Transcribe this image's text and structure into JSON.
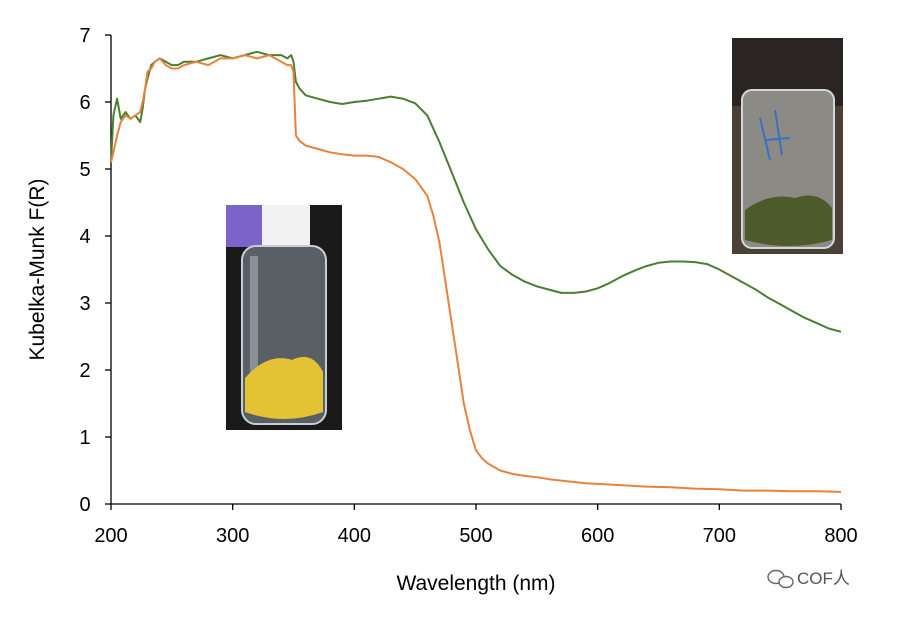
{
  "chart_data": {
    "type": "line",
    "title": "",
    "xlabel": "Wavelength (nm)",
    "ylabel": "Kubelka-Munk F(R)",
    "xlim": [
      200,
      800
    ],
    "ylim": [
      0,
      7
    ],
    "xticks": [
      200,
      300,
      400,
      500,
      600,
      700,
      800
    ],
    "yticks": [
      0,
      1,
      2,
      3,
      4,
      5,
      6,
      7
    ],
    "grid": false,
    "legend": "none",
    "series": [
      {
        "name": "green sample",
        "color": "#4a7f32",
        "x": [
          200,
          202,
          205,
          208,
          212,
          216,
          220,
          224,
          226,
          228,
          230,
          233,
          236,
          240,
          245,
          250,
          255,
          260,
          270,
          280,
          290,
          300,
          310,
          320,
          330,
          340,
          345,
          348,
          350,
          352,
          355,
          360,
          370,
          380,
          390,
          400,
          410,
          420,
          430,
          440,
          450,
          460,
          470,
          480,
          490,
          500,
          510,
          520,
          530,
          540,
          550,
          560,
          570,
          580,
          590,
          600,
          610,
          620,
          630,
          640,
          650,
          660,
          670,
          680,
          690,
          700,
          710,
          720,
          730,
          740,
          750,
          760,
          770,
          780,
          790,
          800
        ],
        "values": [
          5.1,
          5.8,
          6.05,
          5.75,
          5.85,
          5.75,
          5.8,
          5.7,
          5.9,
          6.2,
          6.35,
          6.55,
          6.6,
          6.65,
          6.6,
          6.55,
          6.55,
          6.6,
          6.6,
          6.65,
          6.7,
          6.65,
          6.7,
          6.75,
          6.7,
          6.7,
          6.65,
          6.7,
          6.6,
          6.3,
          6.2,
          6.1,
          6.05,
          6.0,
          5.97,
          6.0,
          6.02,
          6.05,
          6.08,
          6.05,
          5.98,
          5.8,
          5.4,
          4.95,
          4.5,
          4.1,
          3.8,
          3.55,
          3.42,
          3.32,
          3.25,
          3.2,
          3.15,
          3.15,
          3.17,
          3.22,
          3.3,
          3.4,
          3.48,
          3.55,
          3.6,
          3.62,
          3.62,
          3.61,
          3.58,
          3.5,
          3.4,
          3.3,
          3.2,
          3.08,
          2.98,
          2.88,
          2.78,
          2.7,
          2.62,
          2.57
        ]
      },
      {
        "name": "orange sample",
        "color": "#e8823c",
        "x": [
          200,
          202,
          205,
          208,
          212,
          216,
          220,
          224,
          226,
          228,
          230,
          233,
          236,
          240,
          245,
          250,
          255,
          260,
          270,
          280,
          290,
          300,
          310,
          320,
          330,
          340,
          345,
          348,
          350,
          352,
          355,
          360,
          370,
          380,
          390,
          400,
          410,
          420,
          430,
          440,
          450,
          460,
          465,
          470,
          475,
          480,
          485,
          490,
          495,
          500,
          505,
          510,
          520,
          530,
          540,
          550,
          560,
          570,
          580,
          590,
          600,
          620,
          640,
          660,
          680,
          700,
          720,
          740,
          760,
          780,
          800
        ],
        "values": [
          5.1,
          5.25,
          5.5,
          5.7,
          5.8,
          5.75,
          5.8,
          5.85,
          6.0,
          6.2,
          6.45,
          6.5,
          6.6,
          6.65,
          6.55,
          6.5,
          6.5,
          6.55,
          6.6,
          6.55,
          6.65,
          6.65,
          6.7,
          6.65,
          6.7,
          6.6,
          6.55,
          6.55,
          6.45,
          5.5,
          5.42,
          5.35,
          5.3,
          5.25,
          5.22,
          5.2,
          5.2,
          5.18,
          5.1,
          5.0,
          4.85,
          4.6,
          4.3,
          3.9,
          3.3,
          2.7,
          2.1,
          1.5,
          1.1,
          0.8,
          0.68,
          0.6,
          0.5,
          0.45,
          0.42,
          0.4,
          0.37,
          0.35,
          0.33,
          0.31,
          0.3,
          0.28,
          0.26,
          0.25,
          0.23,
          0.22,
          0.2,
          0.2,
          0.19,
          0.19,
          0.18
        ]
      }
    ]
  },
  "insets": {
    "yellow_vial": {
      "caption": "yellow powder in vial",
      "powder_color": "#e3c234"
    },
    "green_vial": {
      "caption": "green-black powder in vial",
      "powder_color": "#4d5a2c"
    }
  },
  "watermark": {
    "text": "COF人"
  }
}
